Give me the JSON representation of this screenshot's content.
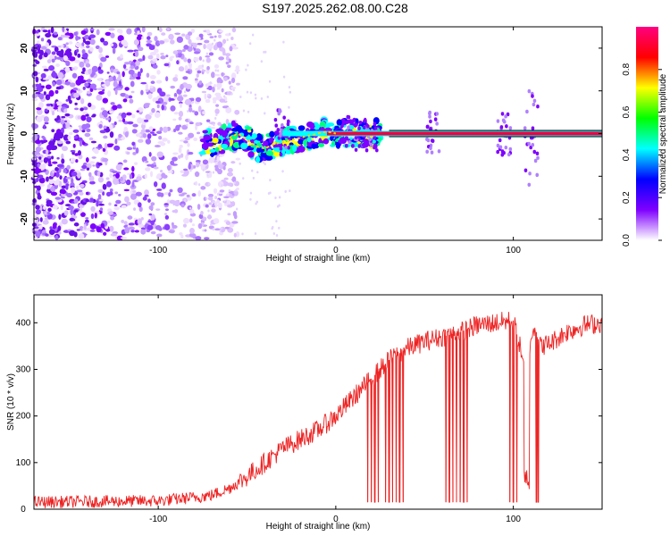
{
  "title": "S197.2025.262.08.00.C28",
  "chart_data": [
    {
      "type": "heatmap",
      "name": "spectrogram",
      "xlabel": "Height of straight line (km)",
      "ylabel": "Frequency (Hz)",
      "xlim": [
        -170,
        150
      ],
      "ylim": [
        -25,
        25
      ],
      "x_ticks": [
        -100,
        0,
        100
      ],
      "x_tick_labels": [
        "-100",
        "0",
        "100"
      ],
      "y_ticks": [
        -20,
        -10,
        0,
        10,
        20
      ],
      "y_tick_labels": [
        "-20",
        "-10",
        "0",
        "10",
        "20"
      ],
      "noise_region_x": [
        -170,
        -65
      ],
      "signal_track": {
        "x": [
          -75,
          -70,
          -65,
          -60,
          -55,
          -50,
          -45,
          -40,
          -35,
          -30,
          -25,
          -20,
          -15,
          -10,
          -5,
          0,
          10,
          20,
          30,
          150
        ],
        "y": [
          -2,
          -2,
          -1.5,
          -1,
          0,
          -1.5,
          -3,
          -3.5,
          -2.5,
          -2,
          -1.5,
          -1,
          -0.5,
          0,
          0.5,
          0,
          0,
          0,
          0,
          0
        ]
      },
      "colorbar": {
        "label": "Normalized spectral amplitude",
        "range": [
          0,
          1
        ],
        "ticks": [
          0.0,
          0.2,
          0.4,
          0.6,
          0.8
        ],
        "tick_labels": [
          "0.0",
          "0.2",
          "0.4",
          "0.6",
          "0.8"
        ],
        "colors": [
          "#ffffff",
          "#7f00ff",
          "#0000ff",
          "#00ffff",
          "#00ff00",
          "#ffff00",
          "#ff0000",
          "#ff0080"
        ]
      }
    },
    {
      "type": "line",
      "name": "snr",
      "xlabel": "Height of straight line (km)",
      "ylabel": "SNR (10 * v/v)",
      "xlim": [
        -170,
        150
      ],
      "ylim": [
        0,
        460
      ],
      "x_ticks": [
        -100,
        0,
        100
      ],
      "x_tick_labels": [
        "-100",
        "0",
        "100"
      ],
      "y_ticks": [
        0,
        100,
        200,
        300,
        400
      ],
      "y_tick_labels": [
        "0",
        "100",
        "200",
        "300",
        "400"
      ],
      "series": [
        {
          "name": "SNR",
          "color": "#ee2222",
          "x": [
            -170,
            -100,
            -80,
            -70,
            -60,
            -50,
            -40,
            -30,
            -20,
            -10,
            0,
            10,
            20,
            30,
            40,
            50,
            60,
            70,
            80,
            90,
            100,
            105,
            108,
            110,
            112,
            115,
            120,
            130,
            140,
            150
          ],
          "y": [
            15,
            18,
            25,
            30,
            45,
            70,
            100,
            130,
            150,
            170,
            200,
            240,
            280,
            320,
            345,
            360,
            370,
            380,
            395,
            400,
            405,
            330,
            220,
            380,
            395,
            350,
            355,
            380,
            395,
            400
          ],
          "spread": 22,
          "dropouts": [
            {
              "x": 18,
              "y": 15
            },
            {
              "x": 20,
              "y": 15
            },
            {
              "x": 22,
              "y": 15
            },
            {
              "x": 24,
              "y": 15
            },
            {
              "x": 28,
              "y": 15
            },
            {
              "x": 30,
              "y": 15
            },
            {
              "x": 32,
              "y": 15
            },
            {
              "x": 34,
              "y": 15
            },
            {
              "x": 36,
              "y": 15
            },
            {
              "x": 38,
              "y": 15
            },
            {
              "x": 62,
              "y": 15
            },
            {
              "x": 64,
              "y": 15
            },
            {
              "x": 66,
              "y": 15
            },
            {
              "x": 68,
              "y": 15
            },
            {
              "x": 70,
              "y": 15
            },
            {
              "x": 72,
              "y": 15
            },
            {
              "x": 74,
              "y": 15
            },
            {
              "x": 98,
              "y": 15
            },
            {
              "x": 100,
              "y": 15
            },
            {
              "x": 102,
              "y": 15
            },
            {
              "x": 113,
              "y": 15
            },
            {
              "x": 114,
              "y": 15
            }
          ]
        }
      ]
    }
  ]
}
